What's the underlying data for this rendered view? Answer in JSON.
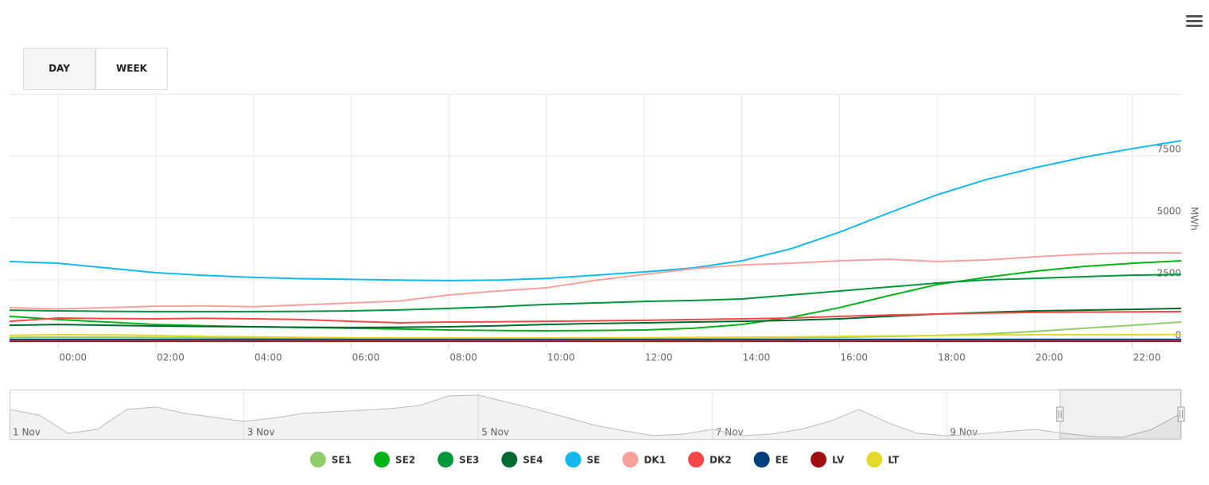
{
  "buttons": [
    "DAY",
    "WEEK"
  ],
  "chart_data": {
    "type": "line",
    "y_label": "MWh",
    "x": [
      -1,
      0,
      1,
      2,
      3,
      4,
      5,
      6,
      7,
      8,
      9,
      10,
      11,
      12,
      13,
      14,
      15,
      16,
      17,
      18,
      19,
      20,
      21,
      22,
      23
    ],
    "xlim": [
      -1,
      23
    ],
    "xticks": [
      {
        "value": 0,
        "label": "00:00"
      },
      {
        "value": 2,
        "label": "02:00"
      },
      {
        "value": 4,
        "label": "04:00"
      },
      {
        "value": 6,
        "label": "06:00"
      },
      {
        "value": 8,
        "label": "08:00"
      },
      {
        "value": 10,
        "label": "10:00"
      },
      {
        "value": 12,
        "label": "12:00"
      },
      {
        "value": 14,
        "label": "14:00"
      },
      {
        "value": 16,
        "label": "16:00"
      },
      {
        "value": 18,
        "label": "18:00"
      },
      {
        "value": 20,
        "label": "20:00"
      },
      {
        "value": 22,
        "label": "22:00"
      }
    ],
    "ylim": [
      0,
      10000
    ],
    "yticks": [
      0,
      2500,
      5000,
      7500
    ],
    "grid": true,
    "legend": "bottom",
    "series": [
      {
        "name": "SE1",
        "color": "#90cc6c",
        "values": [
          180,
          190,
          190,
          180,
          170,
          160,
          150,
          150,
          140,
          140,
          140,
          140,
          150,
          150,
          160,
          170,
          180,
          190,
          220,
          260,
          320,
          420,
          550,
          670,
          800
        ]
      },
      {
        "name": "SE2",
        "color": "#00b418",
        "values": [
          1030,
          900,
          800,
          700,
          650,
          610,
          580,
          550,
          520,
          480,
          460,
          450,
          460,
          480,
          550,
          700,
          990,
          1380,
          1860,
          2310,
          2600,
          2850,
          3040,
          3170,
          3270
        ]
      },
      {
        "name": "SE3",
        "color": "#00963c",
        "values": [
          1280,
          1250,
          1230,
          1220,
          1220,
          1220,
          1230,
          1250,
          1290,
          1350,
          1420,
          1510,
          1570,
          1630,
          1670,
          1730,
          1890,
          2050,
          2210,
          2370,
          2500,
          2560,
          2630,
          2690,
          2720
        ]
      },
      {
        "name": "SE4",
        "color": "#006b30",
        "values": [
          670,
          700,
          670,
          640,
          620,
          610,
          590,
          580,
          590,
          610,
          650,
          700,
          740,
          770,
          800,
          830,
          870,
          930,
          1030,
          1120,
          1190,
          1250,
          1280,
          1310,
          1350
        ]
      },
      {
        "name": "SE",
        "color": "#14b8f0",
        "values": [
          3240,
          3170,
          2980,
          2790,
          2680,
          2600,
          2550,
          2520,
          2490,
          2470,
          2490,
          2560,
          2690,
          2820,
          2980,
          3270,
          3750,
          4420,
          5190,
          5930,
          6540,
          7020,
          7440,
          7790,
          8110
        ]
      },
      {
        "name": "DK1",
        "color": "#f8a19c",
        "values": [
          1380,
          1330,
          1380,
          1440,
          1450,
          1420,
          1490,
          1570,
          1650,
          1890,
          2050,
          2180,
          2480,
          2720,
          2950,
          3100,
          3170,
          3270,
          3330,
          3240,
          3300,
          3430,
          3530,
          3590,
          3590
        ]
      },
      {
        "name": "DK2",
        "color": "#f44848",
        "values": [
          830,
          960,
          940,
          930,
          950,
          930,
          900,
          830,
          770,
          800,
          810,
          830,
          850,
          870,
          900,
          930,
          960,
          1030,
          1080,
          1120,
          1160,
          1190,
          1200,
          1210,
          1220
        ]
      },
      {
        "name": "EE",
        "color": "#003f7d",
        "values": [
          100,
          100,
          100,
          100,
          100,
          100,
          100,
          100,
          100,
          100,
          100,
          100,
          100,
          100,
          100,
          100,
          100,
          100,
          100,
          100,
          100,
          100,
          100,
          100,
          100
        ]
      },
      {
        "name": "LV",
        "color": "#a00f0f",
        "values": [
          30,
          30,
          30,
          30,
          30,
          30,
          30,
          30,
          30,
          30,
          30,
          30,
          30,
          30,
          30,
          30,
          30,
          30,
          30,
          30,
          30,
          30,
          30,
          30,
          30
        ]
      },
      {
        "name": "LT",
        "color": "#e4d82a",
        "values": [
          260,
          290,
          280,
          260,
          220,
          200,
          180,
          170,
          160,
          160,
          160,
          160,
          170,
          170,
          180,
          190,
          200,
          220,
          240,
          260,
          280,
          290,
          290,
          290,
          300
        ]
      }
    ]
  },
  "navigator": {
    "labels": [
      "1 Nov",
      "3 Nov",
      "5 Nov",
      "7 Nov",
      "9 Nov"
    ],
    "ylim": [
      2000,
      8500
    ],
    "values": [
      5885,
      5150,
      2735,
      3260,
      5885,
      6200,
      5360,
      4835,
      4310,
      4730,
      5360,
      5570,
      5780,
      5990,
      6410,
      7670,
      7775,
      6830,
      5885,
      4835,
      3785,
      3050,
      2420,
      2630,
      3260,
      2420,
      2630,
      3260,
      4310,
      5885,
      4100,
      2735,
      2420,
      2630,
      2945,
      3260,
      2735,
      2315,
      2210,
      3260,
      5360
    ]
  }
}
